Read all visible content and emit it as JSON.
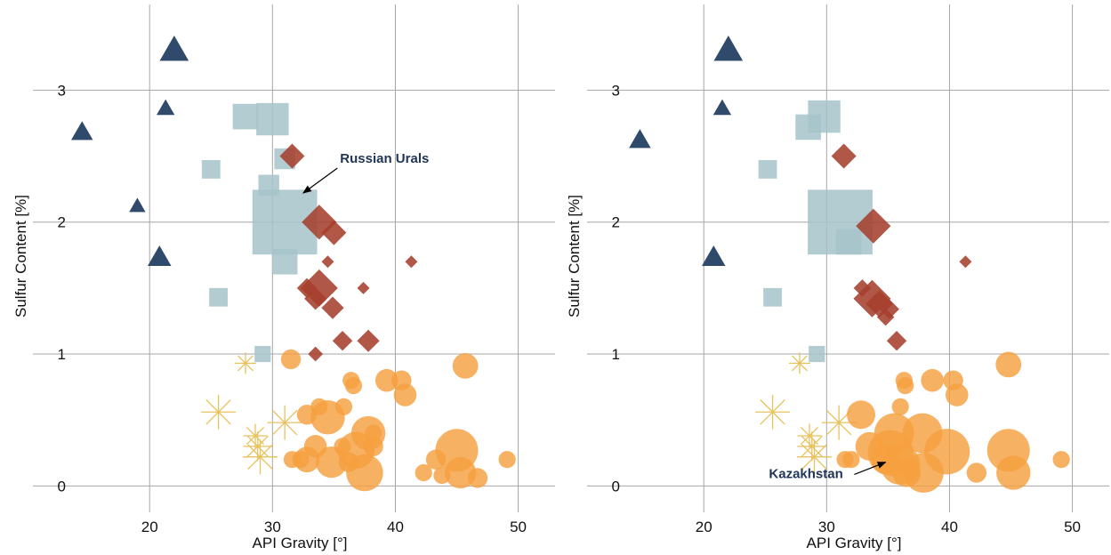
{
  "colors": {
    "triangle": "#2f4a6b",
    "square": "#a5c3c9",
    "diamond": "#a5402d",
    "circle": "#f5a03f",
    "star": "#e8c25e",
    "grid": "#a6a6a6",
    "annotation": "#1f3557"
  },
  "chart_data": [
    {
      "type": "scatter",
      "xlabel": "API Gravity [°]",
      "ylabel": "Sulfur Content [%]",
      "xlim": [
        10.5,
        53
      ],
      "ylim": [
        -0.2,
        3.65
      ],
      "xticks": [
        20,
        30,
        40,
        50
      ],
      "yticks": [
        0,
        1,
        2,
        3
      ],
      "grid": true,
      "annotation": {
        "text": "Russian Urals",
        "point": [
          32.5,
          2.22
        ],
        "label_pos": [
          35.5,
          2.45
        ]
      },
      "series": [
        {
          "marker": "triangle",
          "points": [
            [
              22,
              3.3,
              1.6
            ],
            [
              21.3,
              2.86,
              1.0
            ],
            [
              14.5,
              2.68,
              1.2
            ],
            [
              19,
              2.12,
              0.9
            ],
            [
              20.8,
              1.73,
              1.3
            ]
          ]
        },
        {
          "marker": "square",
          "points": [
            [
              27.8,
              2.8,
              1.1
            ],
            [
              30,
              2.78,
              1.4
            ],
            [
              31,
              2.48,
              0.9
            ],
            [
              25,
              2.4,
              0.8
            ],
            [
              29.7,
              2.28,
              0.9
            ],
            [
              31,
              2.0,
              2.8
            ],
            [
              31,
              1.7,
              1.1
            ],
            [
              25.6,
              1.43,
              0.8
            ],
            [
              29.2,
              1.0,
              0.7
            ]
          ]
        },
        {
          "marker": "diamond",
          "points": [
            [
              31.6,
              2.5,
              1.0
            ],
            [
              33.8,
              2.0,
              1.4
            ],
            [
              35,
              1.92,
              1.0
            ],
            [
              34.5,
              1.7,
              0.5
            ],
            [
              41.3,
              1.7,
              0.5
            ],
            [
              33.8,
              1.5,
              1.5
            ],
            [
              32.8,
              1.5,
              0.8
            ],
            [
              37.4,
              1.5,
              0.5
            ],
            [
              33.5,
              1.42,
              0.9
            ],
            [
              34.9,
              1.35,
              0.9
            ],
            [
              35.7,
              1.1,
              0.8
            ],
            [
              37.8,
              1.1,
              0.9
            ],
            [
              33.5,
              1.0,
              0.6
            ]
          ]
        },
        {
          "marker": "star",
          "points": [
            [
              27.8,
              0.93,
              0.8
            ],
            [
              25.6,
              0.56,
              1.3
            ],
            [
              31,
              0.48,
              1.3
            ],
            [
              28.6,
              0.38,
              0.9
            ],
            [
              28.8,
              0.3,
              1.1
            ],
            [
              29,
              0.22,
              1.3
            ]
          ]
        },
        {
          "marker": "circle",
          "points": [
            [
              31.5,
              0.96,
              0.7
            ],
            [
              45.7,
              0.91,
              0.9
            ],
            [
              36.4,
              0.8,
              0.6
            ],
            [
              39.3,
              0.8,
              0.8
            ],
            [
              40.5,
              0.8,
              0.7
            ],
            [
              36.6,
              0.76,
              0.6
            ],
            [
              40.8,
              0.69,
              0.8
            ],
            [
              35.8,
              0.6,
              0.6
            ],
            [
              33.8,
              0.6,
              0.6
            ],
            [
              32.8,
              0.54,
              0.7
            ],
            [
              34.5,
              0.52,
              1.2
            ],
            [
              37.8,
              0.4,
              1.2
            ],
            [
              38.2,
              0.4,
              0.6
            ],
            [
              33.5,
              0.3,
              0.8
            ],
            [
              35.7,
              0.3,
              0.6
            ],
            [
              36.8,
              0.27,
              1.3
            ],
            [
              38.2,
              0.3,
              0.7
            ],
            [
              45,
              0.27,
              1.5
            ],
            [
              43.3,
              0.2,
              0.7
            ],
            [
              31.6,
              0.2,
              0.6
            ],
            [
              32.3,
              0.2,
              0.6
            ],
            [
              32.8,
              0.2,
              0.9
            ],
            [
              34.8,
              0.18,
              1.1
            ],
            [
              36.2,
              0.18,
              0.7
            ],
            [
              37.5,
              0.1,
              1.3
            ],
            [
              42.3,
              0.1,
              0.6
            ],
            [
              45.3,
              0.1,
              1.1
            ],
            [
              43.8,
              0.08,
              0.6
            ],
            [
              46.7,
              0.06,
              0.7
            ],
            [
              49.1,
              0.2,
              0.6
            ]
          ]
        }
      ]
    },
    {
      "type": "scatter",
      "xlabel": "API Gravity [°]",
      "ylabel": "Sulfur Content [%]",
      "xlim": [
        10.5,
        53
      ],
      "ylim": [
        -0.2,
        3.65
      ],
      "xticks": [
        20,
        30,
        40,
        50
      ],
      "yticks": [
        0,
        1,
        2,
        3
      ],
      "grid": true,
      "annotation": {
        "text": "Kazakhstan",
        "point": [
          34.8,
          0.18
        ],
        "label_pos": [
          25.3,
          0.06
        ]
      },
      "series": [
        {
          "marker": "triangle",
          "points": [
            [
              22,
              3.3,
              1.6
            ],
            [
              21.5,
              2.86,
              1.0
            ],
            [
              14.8,
              2.62,
              1.2
            ],
            [
              20.8,
              1.73,
              1.3
            ]
          ]
        },
        {
          "marker": "square",
          "points": [
            [
              29.8,
              2.8,
              1.4
            ],
            [
              28.5,
              2.72,
              1.1
            ],
            [
              25.2,
              2.4,
              0.8
            ],
            [
              31.1,
              2.0,
              2.8
            ],
            [
              31.8,
              1.85,
              1.1
            ],
            [
              25.6,
              1.43,
              0.8
            ],
            [
              29.2,
              1.0,
              0.7
            ]
          ]
        },
        {
          "marker": "diamond",
          "points": [
            [
              31.4,
              2.5,
              1.0
            ],
            [
              33.8,
              1.97,
              1.4
            ],
            [
              41.3,
              1.7,
              0.5
            ],
            [
              33.7,
              1.42,
              1.5
            ],
            [
              32.9,
              1.5,
              0.7
            ],
            [
              34.3,
              1.38,
              1.1
            ],
            [
              35.1,
              1.34,
              0.8
            ],
            [
              34.8,
              1.28,
              0.7
            ],
            [
              35.7,
              1.1,
              0.8
            ]
          ]
        },
        {
          "marker": "star",
          "points": [
            [
              27.8,
              0.93,
              0.8
            ],
            [
              25.6,
              0.56,
              1.3
            ],
            [
              31,
              0.48,
              1.3
            ],
            [
              28.6,
              0.38,
              0.9
            ],
            [
              28.8,
              0.3,
              1.1
            ],
            [
              29,
              0.22,
              1.3
            ]
          ]
        },
        {
          "marker": "circle",
          "points": [
            [
              36.3,
              0.8,
              0.6
            ],
            [
              38.6,
              0.8,
              0.8
            ],
            [
              40.3,
              0.8,
              0.7
            ],
            [
              44.8,
              0.92,
              0.9
            ],
            [
              36.4,
              0.76,
              0.6
            ],
            [
              40.6,
              0.69,
              0.8
            ],
            [
              36,
              0.6,
              0.6
            ],
            [
              32.8,
              0.54,
              1.0
            ],
            [
              35.5,
              0.4,
              1.4
            ],
            [
              37.8,
              0.4,
              1.4
            ],
            [
              33.5,
              0.3,
              1.0
            ],
            [
              35.2,
              0.25,
              1.6
            ],
            [
              39.8,
              0.26,
              1.6
            ],
            [
              44.8,
              0.27,
              1.5
            ],
            [
              31.5,
              0.2,
              0.6
            ],
            [
              32,
              0.2,
              0.6
            ],
            [
              34.8,
              0.2,
              1.0
            ],
            [
              36,
              0.16,
              1.4
            ],
            [
              37.9,
              0.1,
              1.4
            ],
            [
              42.2,
              0.1,
              0.7
            ],
            [
              45.2,
              0.1,
              1.2
            ],
            [
              49.1,
              0.2,
              0.6
            ],
            [
              36.5,
              0.1,
              1.0
            ]
          ]
        }
      ]
    }
  ]
}
